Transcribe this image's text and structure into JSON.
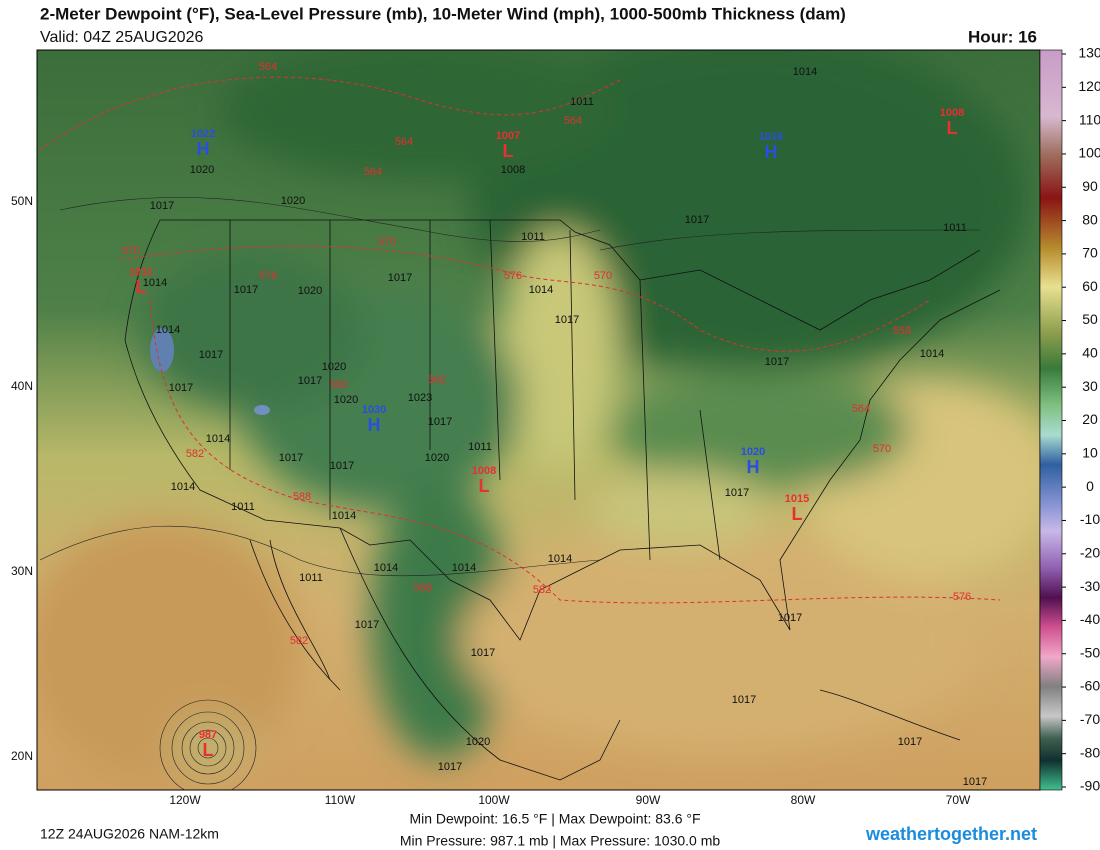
{
  "header": {
    "title": "2-Meter Dewpoint (°F), Sea-Level Pressure (mb), 10-Meter Wind (mph), 1000-500mb Thickness (dam)",
    "valid": "Valid: 04Z 25AUG2026",
    "hour": "Hour: 16"
  },
  "map": {
    "lat_labels": [
      "50N",
      "40N",
      "30N",
      "20N"
    ],
    "lon_labels": [
      "120W",
      "110W",
      "100W",
      "90W",
      "80W",
      "70W"
    ],
    "pressure_centers": [
      {
        "letter": "H",
        "value": 1022,
        "color": "#2a4ee0"
      },
      {
        "letter": "H",
        "value": 1016,
        "color": "#2a4ee0"
      },
      {
        "letter": "L",
        "value": 1008,
        "color": "#e83030"
      },
      {
        "letter": "L",
        "value": 1007,
        "color": "#e83030"
      },
      {
        "letter": "L",
        "value": 1011,
        "color": "#e83030"
      },
      {
        "letter": "H",
        "value": 1030,
        "color": "#2a4ee0"
      },
      {
        "letter": "L",
        "value": 1008,
        "color": "#e83030"
      },
      {
        "letter": "H",
        "value": 1020,
        "color": "#2a4ee0"
      },
      {
        "letter": "L",
        "value": 1015,
        "color": "#e83030"
      },
      {
        "letter": "L",
        "value": 987,
        "color": "#e83030"
      }
    ],
    "isobar_labels": [
      1014,
      1011,
      1020,
      1008,
      1017,
      1020,
      1017,
      1011,
      1011,
      1014,
      1017,
      1017,
      1020,
      1014,
      1017,
      1014,
      1017,
      1020,
      1017,
      1017,
      1023,
      1020,
      1017,
      1014,
      1011,
      1020,
      1017,
      1017,
      1014,
      1017,
      1011,
      1014,
      1014,
      1014,
      1014,
      1011,
      1017,
      1017,
      1017,
      1017,
      1017,
      1020,
      1017,
      1017,
      1014,
      1017
    ],
    "thickness_labels": [
      564,
      564,
      564,
      564,
      570,
      570,
      576,
      576,
      570,
      558,
      582,
      582,
      564,
      570,
      582,
      588,
      588,
      582,
      576,
      582
    ]
  },
  "colorbar": {
    "ticks": [
      130,
      120,
      110,
      100,
      90,
      80,
      70,
      60,
      50,
      40,
      30,
      20,
      10,
      0,
      -10,
      -20,
      -30,
      -40,
      -50,
      -60,
      -70,
      -80,
      -90
    ]
  },
  "footer": {
    "run": "12Z 24AUG2026 NAM-12km",
    "dewpoint": "Min Dewpoint:  16.5 °F | Max Dewpoint:  83.6 °F",
    "pressure": "Min Pressure: 987.1 mb | Max Pressure: 1030.0 mb",
    "site": "weathertogether.net"
  }
}
